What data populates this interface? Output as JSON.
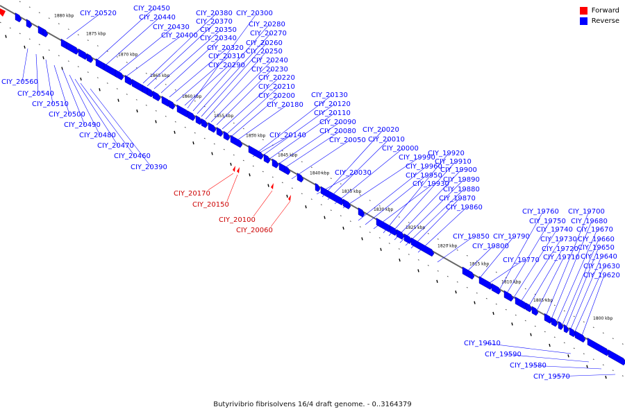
{
  "legend": [
    {
      "label": "Forward",
      "color": "#ff0000"
    },
    {
      "label": "Reverse",
      "color": "#0000ff"
    }
  ],
  "caption": "Butyrivibrio fibrisolvens 16/4 draft genome. - 0..3164379",
  "colors": {
    "forward": "#ff0000",
    "reverse": "#0000ff",
    "axis": "#777777",
    "label_line_reverse": "#0000ff",
    "label_line_forward": "#ff0000"
  },
  "ticks": [
    "1880 kbp",
    "1875 kbp",
    "1870 kbp",
    "1865 kbp",
    "1860 kbp",
    "1855 kbp",
    "1850 kbp",
    "1845 kbp",
    "1840 kbp",
    "1835 kbp",
    "1830 kbp",
    "1825 kbp",
    "1820 kbp",
    "1815 kbp",
    "1810 kbp",
    "1805 kbp",
    "1800 kbp"
  ],
  "gene_labels": {
    "reverse": [
      "CIY_20520",
      "CIY_20450",
      "CIY_20440",
      "CIY_20430",
      "CIY_20400",
      "CIY_20380",
      "CIY_20370",
      "CIY_20350",
      "CIY_20340",
      "CIY_20320",
      "CIY_20310",
      "CIY_20290",
      "CIY_20300",
      "CIY_20280",
      "CIY_20270",
      "CIY_20260",
      "CIY_20250",
      "CIY_20240",
      "CIY_20230",
      "CIY_20220",
      "CIY_20210",
      "CIY_20200",
      "CIY_20180",
      "CIY_20560",
      "CIY_20540",
      "CIY_20510",
      "CIY_20500",
      "CIY_20490",
      "CIY_20480",
      "CIY_20470",
      "CIY_20460",
      "CIY_20390",
      "CIY_20130",
      "CIY_20120",
      "CIY_20110",
      "CIY_20090",
      "CIY_20080",
      "CIY_20140",
      "CIY_20050",
      "CIY_20030",
      "CIY_20020",
      "CIY_20010",
      "CIY_20000",
      "CIY_19990",
      "CIY_19960",
      "CIY_19950",
      "CIY_19930",
      "CIY_19920",
      "CIY_19910",
      "CIY_19900",
      "CIY_19890",
      "CIY_19880",
      "CIY_19870",
      "CIY_19860",
      "CIY_19850",
      "CIY_19800",
      "CIY_19790",
      "CIY_19770",
      "CIY_19760",
      "CIY_19750",
      "CIY_19740",
      "CIY_19730",
      "CIY_19720",
      "CIY_19710",
      "CIY_19700",
      "CIY_19680",
      "CIY_19670",
      "CIY_19660",
      "CIY_19650",
      "CIY_19640",
      "CIY_19630",
      "CIY_19620",
      "CIY_19610",
      "CIY_19590",
      "CIY_19580",
      "CIY_19570"
    ],
    "forward": [
      "CIY_20170",
      "CIY_20150",
      "CIY_20100",
      "CIY_20060"
    ]
  }
}
